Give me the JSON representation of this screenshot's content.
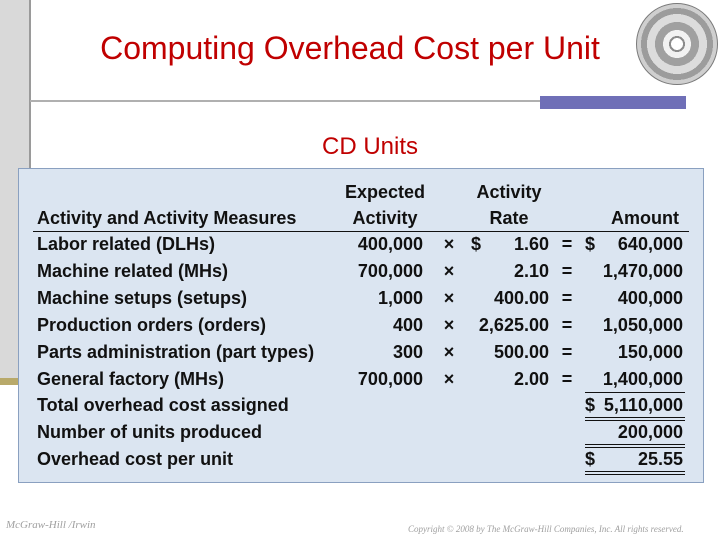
{
  "slide": {
    "title": "Computing Overhead Cost per Unit",
    "subtitle": "CD Units"
  },
  "table": {
    "headers": {
      "measure": "Activity and Activity Measures",
      "expected_line1": "Expected",
      "expected_line2": "Activity",
      "rate_line1": "Activity",
      "rate_line2": "Rate",
      "amount": "Amount"
    },
    "rows": [
      {
        "measure": "Labor related (DLHs)",
        "expected": "400,000",
        "op": "×",
        "rate_dollar": "$",
        "rate": "1.60",
        "eq": "=",
        "amount_dollar": "$",
        "amount": "640,000"
      },
      {
        "measure": "Machine related (MHs)",
        "expected": "700,000",
        "op": "×",
        "rate_dollar": "",
        "rate": "2.10",
        "eq": "=",
        "amount_dollar": "",
        "amount": "1,470,000"
      },
      {
        "measure": "Machine setups (setups)",
        "expected": "1,000",
        "op": "×",
        "rate_dollar": "",
        "rate": "400.00",
        "eq": "=",
        "amount_dollar": "",
        "amount": "400,000"
      },
      {
        "measure": "Production orders (orders)",
        "expected": "400",
        "op": "×",
        "rate_dollar": "",
        "rate": "2,625.00",
        "eq": "=",
        "amount_dollar": "",
        "amount": "1,050,000"
      },
      {
        "measure": "Parts administration (part types)",
        "expected": "300",
        "op": "×",
        "rate_dollar": "",
        "rate": "500.00",
        "eq": "=",
        "amount_dollar": "",
        "amount": "150,000"
      },
      {
        "measure": "General factory (MHs)",
        "expected": "700,000",
        "op": "×",
        "rate_dollar": "",
        "rate": "2.00",
        "eq": "=",
        "amount_dollar": "",
        "amount": "1,400,000"
      }
    ],
    "summary": [
      {
        "label": "Total overhead cost assigned",
        "dollar": "$",
        "value": "5,110,000"
      },
      {
        "label": "Number of units produced",
        "dollar": "",
        "value": "200,000"
      },
      {
        "label": "Overhead cost per unit",
        "dollar": "$",
        "value": "25.55"
      }
    ]
  },
  "footer": {
    "left": "McGraw-Hill /Irwin",
    "right": "Copyright © 2008 by The McGraw-Hill Companies, Inc. All rights reserved."
  },
  "colors": {
    "title": "#c00000",
    "panel": "#dbe5f1",
    "accent_block": "#6f6fb7"
  }
}
